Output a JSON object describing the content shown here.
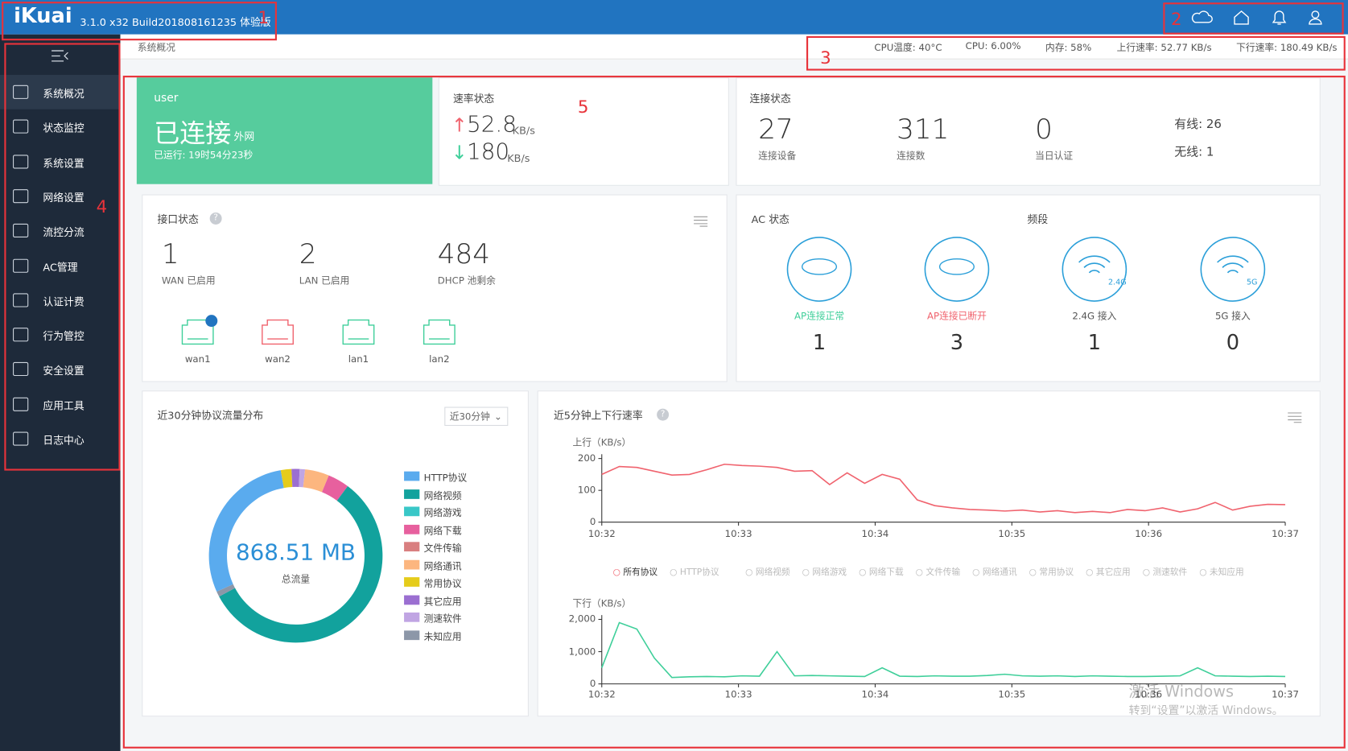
{
  "header": {
    "logo": "iKuai",
    "version": "3.1.0 x32 Build201808161235 体验版"
  },
  "annotations": [
    "1",
    "2",
    "3",
    "4",
    "5"
  ],
  "breadcrumb": "系统概况",
  "status": [
    "CPU温度: 40°C",
    "CPU: 6.00%",
    "内存: 58%",
    "上行速率: 52.77 KB/s",
    "下行速率: 180.49 KB/s"
  ],
  "menu": [
    "系统概况",
    "状态监控",
    "系统设置",
    "网络设置",
    "流控分流",
    "AC管理",
    "认证计费",
    "行为管控",
    "安全设置",
    "应用工具",
    "日志中心"
  ],
  "user_card": {
    "name": "user",
    "state": "已连接",
    "network": "外网",
    "uptime": "已运行: 19时54分23秒"
  },
  "speed_card": {
    "title": "速率状态",
    "up": "52.8",
    "down": "180",
    "unit": "KB/s"
  },
  "connection_card": {
    "title": "连接状态",
    "stats": [
      {
        "value": "27",
        "label": "连接设备"
      },
      {
        "value": "311",
        "label": "连接数"
      },
      {
        "value": "0",
        "label": "当日认证"
      }
    ],
    "wired": "有线: 26",
    "wireless": "无线: 1"
  },
  "interface_card": {
    "title": "接口状态",
    "stats": [
      {
        "value": "1",
        "label": "WAN 已启用"
      },
      {
        "value": "2",
        "label": "LAN 已启用"
      },
      {
        "value": "484",
        "label": "DHCP 池剩余"
      }
    ],
    "ports": [
      "wan1",
      "wan2",
      "lan1",
      "lan2"
    ]
  },
  "ac_card": {
    "title": "AC 状态",
    "band_title": "频段",
    "items": [
      {
        "label": "AP连接正常",
        "value": "1"
      },
      {
        "label": "AP连接已断开",
        "value": "3"
      },
      {
        "label": "2.4G 接入",
        "value": "1",
        "badge": "2.4G"
      },
      {
        "label": "5G 接入",
        "value": "0",
        "badge": "5G"
      }
    ]
  },
  "protocol_chart": {
    "type": "pie",
    "title": "近30分钟协议流量分布",
    "selector": "近30分钟",
    "total": "868.51 MB",
    "total_label": "总流量",
    "series": [
      {
        "name": "HTTP协议",
        "color": "#5aabee",
        "value": 29
      },
      {
        "name": "网络视频",
        "color": "#12a29d",
        "value": 57
      },
      {
        "name": "网络游戏",
        "color": "#39c7c7",
        "value": 0
      },
      {
        "name": "网络下载",
        "color": "#e7609e",
        "value": 4
      },
      {
        "name": "文件传输",
        "color": "#d97f80",
        "value": 0
      },
      {
        "name": "网络通讯",
        "color": "#fcb67f",
        "value": 4.5
      },
      {
        "name": "常用协议",
        "color": "#e5cc1b",
        "value": 2
      },
      {
        "name": "其它应用",
        "color": "#9b6fd1",
        "value": 1.5
      },
      {
        "name": "测速软件",
        "color": "#c0a5e3",
        "value": 1
      },
      {
        "name": "未知应用",
        "color": "#8c97a8",
        "value": 1
      }
    ]
  },
  "rate_chart": {
    "type": "line",
    "title": "近5分钟上下行速率",
    "legend": [
      "所有协议",
      "HTTP协议",
      "网络视频",
      "网络游戏",
      "网络下载",
      "文件传输",
      "网络通讯",
      "常用协议",
      "其它应用",
      "测速软件",
      "未知应用"
    ],
    "x_labels": [
      "10:32",
      "10:33",
      "10:34",
      "10:35",
      "10:36",
      "10:37"
    ],
    "up": {
      "ylabel": "上行（KB/s）",
      "ylim": [
        0,
        200
      ],
      "yticks": [
        0,
        100,
        200
      ],
      "color": "#f0636e",
      "values": [
        150,
        175,
        172,
        160,
        148,
        150,
        165,
        182,
        178,
        176,
        172,
        160,
        162,
        118,
        155,
        122,
        150,
        135,
        70,
        52,
        45,
        40,
        38,
        35,
        38,
        32,
        36,
        30,
        34,
        30,
        40,
        36,
        45,
        32,
        42,
        62,
        38,
        50,
        56,
        55
      ]
    },
    "down": {
      "ylabel": "下行（KB/s）",
      "ylim": [
        0,
        2000
      ],
      "yticks": [
        0,
        {
          "value": 1000,
          "label": "1,000"
        },
        {
          "value": 2000,
          "label": "2,000"
        }
      ],
      "color": "#3fcf9a",
      "values": [
        500,
        1900,
        1700,
        800,
        200,
        220,
        230,
        220,
        250,
        240,
        1000,
        250,
        260,
        250,
        240,
        230,
        500,
        240,
        230,
        250,
        240,
        240,
        260,
        300,
        250,
        240,
        250,
        230,
        250,
        240,
        230,
        230,
        240,
        250,
        500,
        250,
        240,
        230,
        240,
        230
      ]
    }
  },
  "watermark": [
    "激活 Windows",
    "转到“设置”以激活 Windows。"
  ]
}
